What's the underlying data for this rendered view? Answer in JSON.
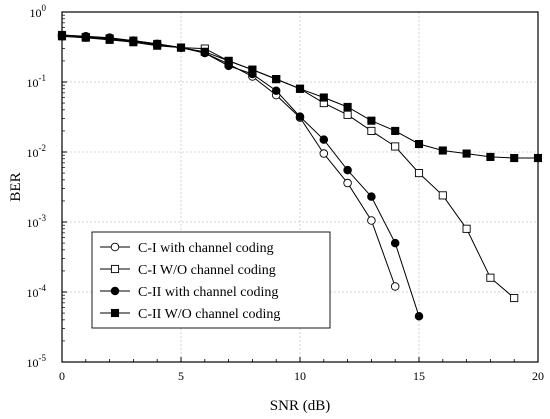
{
  "chart_data": {
    "type": "line",
    "xlabel": "SNR (dB)",
    "ylabel": "BER",
    "xlim": [
      0,
      20
    ],
    "ylim": [
      1e-05,
      1
    ],
    "yscale": "log",
    "grid": true,
    "legend_position": "bottom-left",
    "x_ticks": [
      "0",
      "5",
      "10",
      "15",
      "20"
    ],
    "y_ticks": [
      {
        "value": 1,
        "label": "10",
        "exp": "0"
      },
      {
        "value": 0.1,
        "label": "10",
        "exp": "-1"
      },
      {
        "value": 0.01,
        "label": "10",
        "exp": "-2"
      },
      {
        "value": 0.001,
        "label": "10",
        "exp": "-3"
      },
      {
        "value": 0.0001,
        "label": "10",
        "exp": "-4"
      },
      {
        "value": 1e-05,
        "label": "10",
        "exp": "-5"
      }
    ],
    "series": [
      {
        "name": "C-I   with channel coding",
        "marker": "circle-open",
        "x": [
          0,
          1,
          2,
          3,
          4,
          5,
          6,
          7,
          8,
          9,
          10,
          11,
          12,
          13,
          14
        ],
        "y": [
          0.45,
          0.43,
          0.41,
          0.38,
          0.34,
          0.31,
          0.26,
          0.18,
          0.12,
          0.065,
          0.031,
          0.0095,
          0.0036,
          0.00105,
          0.00012
        ]
      },
      {
        "name": "C-I   W/O channel coding",
        "marker": "square-open",
        "x": [
          0,
          1,
          2,
          3,
          4,
          5,
          6,
          7,
          8,
          9,
          10,
          11,
          12,
          13,
          14,
          15,
          16,
          17,
          18,
          19
        ],
        "y": [
          0.47,
          0.44,
          0.42,
          0.39,
          0.35,
          0.31,
          0.3,
          0.2,
          0.15,
          0.11,
          0.08,
          0.05,
          0.034,
          0.02,
          0.012,
          0.005,
          0.0024,
          0.0008,
          0.00016,
          8.2e-05
        ]
      },
      {
        "name": "C-II  with channel coding",
        "marker": "circle-filled",
        "x": [
          0,
          1,
          2,
          3,
          4,
          5,
          6,
          7,
          8,
          9,
          10,
          11,
          12,
          13,
          14,
          15
        ],
        "y": [
          0.47,
          0.45,
          0.43,
          0.39,
          0.35,
          0.31,
          0.26,
          0.17,
          0.13,
          0.075,
          0.032,
          0.015,
          0.0055,
          0.0023,
          0.0005,
          4.5e-05
        ]
      },
      {
        "name": "C-II  W/O channel coding",
        "marker": "square-filled",
        "x": [
          0,
          1,
          2,
          3,
          4,
          5,
          6,
          7,
          8,
          9,
          10,
          11,
          12,
          13,
          14,
          15,
          16,
          17,
          18,
          19,
          20
        ],
        "y": [
          0.45,
          0.43,
          0.4,
          0.37,
          0.33,
          0.31,
          0.27,
          0.2,
          0.15,
          0.11,
          0.08,
          0.06,
          0.044,
          0.028,
          0.02,
          0.013,
          0.0105,
          0.0095,
          0.0085,
          0.0082,
          0.0082
        ]
      }
    ]
  }
}
